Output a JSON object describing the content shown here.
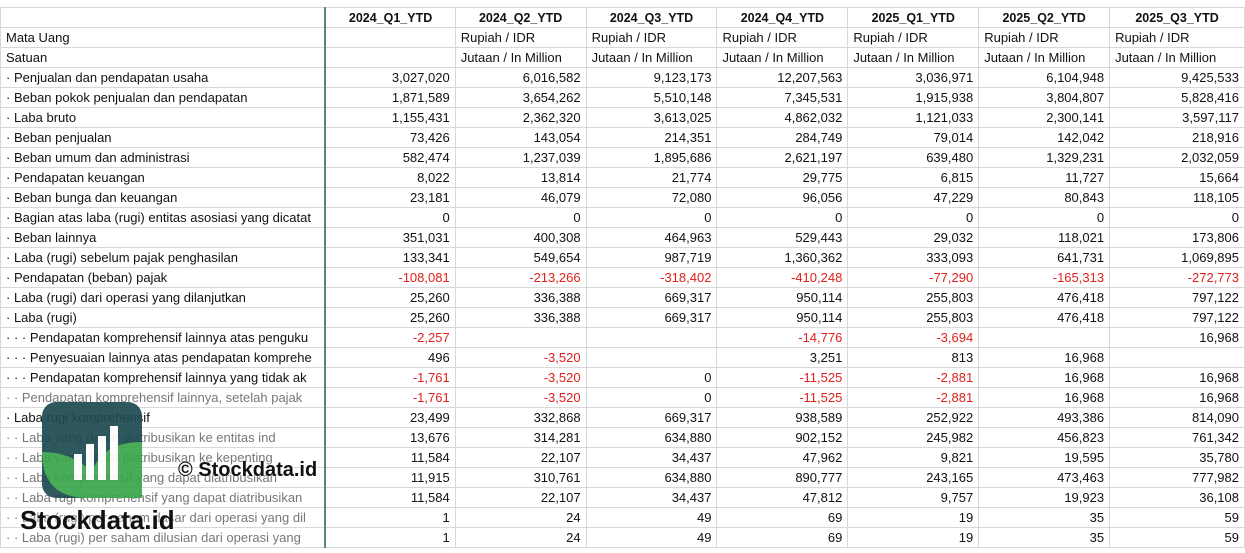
{
  "columns": [
    "2024_Q1_YTD",
    "2024_Q2_YTD",
    "2024_Q3_YTD",
    "2024_Q4_YTD",
    "2025_Q1_YTD",
    "2025_Q2_YTD",
    "2025_Q3_YTD"
  ],
  "currency": {
    "label": "Mata Uang",
    "values": [
      null,
      "Rupiah / IDR",
      "Rupiah / IDR",
      "Rupiah / IDR",
      "Rupiah / IDR",
      "Rupiah / IDR",
      "Rupiah / IDR"
    ]
  },
  "unit": {
    "label": "Satuan",
    "values": [
      null,
      "Jutaan / In Million",
      "Jutaan / In Million",
      "Jutaan / In Million",
      "Jutaan / In Million",
      "Jutaan / In Million",
      "Jutaan / In Million"
    ]
  },
  "rows": [
    {
      "label": "· Penjualan dan pendapatan usaha",
      "values": [
        "3,027,020",
        "6,016,582",
        "9,123,173",
        "12,207,563",
        "3,036,971",
        "6,104,948",
        "9,425,533"
      ]
    },
    {
      "label": "· Beban pokok penjualan dan pendapatan",
      "values": [
        "1,871,589",
        "3,654,262",
        "5,510,148",
        "7,345,531",
        "1,915,938",
        "3,804,807",
        "5,828,416"
      ]
    },
    {
      "label": "· Laba bruto",
      "values": [
        "1,155,431",
        "2,362,320",
        "3,613,025",
        "4,862,032",
        "1,121,033",
        "2,300,141",
        "3,597,117"
      ]
    },
    {
      "label": "· Beban penjualan",
      "values": [
        "73,426",
        "143,054",
        "214,351",
        "284,749",
        "79,014",
        "142,042",
        "218,916"
      ]
    },
    {
      "label": "· Beban umum dan administrasi",
      "values": [
        "582,474",
        "1,237,039",
        "1,895,686",
        "2,621,197",
        "639,480",
        "1,329,231",
        "2,032,059"
      ]
    },
    {
      "label": "· Pendapatan keuangan",
      "values": [
        "8,022",
        "13,814",
        "21,774",
        "29,775",
        "6,815",
        "11,727",
        "15,664"
      ]
    },
    {
      "label": "· Beban bunga dan keuangan",
      "values": [
        "23,181",
        "46,079",
        "72,080",
        "96,056",
        "47,229",
        "80,843",
        "118,105"
      ]
    },
    {
      "label": "· Bagian atas laba (rugi) entitas asosiasi yang dicatat",
      "values": [
        "0",
        "0",
        "0",
        "0",
        "0",
        "0",
        "0"
      ]
    },
    {
      "label": "· Beban lainnya",
      "values": [
        "351,031",
        "400,308",
        "464,963",
        "529,443",
        "29,032",
        "118,021",
        "173,806"
      ]
    },
    {
      "label": "· Laba (rugi) sebelum pajak penghasilan",
      "values": [
        "133,341",
        "549,654",
        "987,719",
        "1,360,362",
        "333,093",
        "641,731",
        "1,069,895"
      ]
    },
    {
      "label": "· Pendapatan (beban) pajak",
      "values": [
        "-108,081",
        "-213,266",
        "-318,402",
        "-410,248",
        "-77,290",
        "-165,313",
        "-272,773"
      ]
    },
    {
      "label": "· Laba (rugi) dari operasi yang dilanjutkan",
      "values": [
        "25,260",
        "336,388",
        "669,317",
        "950,114",
        "255,803",
        "476,418",
        "797,122"
      ]
    },
    {
      "label": "· Laba (rugi)",
      "values": [
        "25,260",
        "336,388",
        "669,317",
        "950,114",
        "255,803",
        "476,418",
        "797,122"
      ]
    },
    {
      "label": "· · · Pendapatan komprehensif lainnya atas penguku",
      "values": [
        "-2,257",
        null,
        null,
        "-14,776",
        "-3,694",
        null,
        "16,968"
      ]
    },
    {
      "label": "· · · Penyesuaian lainnya atas pendapatan komprehe",
      "values": [
        "496",
        "-3,520",
        null,
        "3,251",
        "813",
        "16,968",
        null
      ]
    },
    {
      "label": "· · · Pendapatan komprehensif lainnya yang tidak ak",
      "values": [
        "-1,761",
        "-3,520",
        "0",
        "-11,525",
        "-2,881",
        "16,968",
        "16,968"
      ]
    },
    {
      "label": "· · Pendapatan komprehensif lainnya, setelah pajak",
      "values": [
        "-1,761",
        "-3,520",
        "0",
        "-11,525",
        "-2,881",
        "16,968",
        "16,968"
      ]
    },
    {
      "label": "· Laba rugi komprehensif",
      "values": [
        "23,499",
        "332,868",
        "669,317",
        "938,589",
        "252,922",
        "493,386",
        "814,090"
      ]
    },
    {
      "label": "· · Laba yang dapat diatribusikan ke entitas ind",
      "values": [
        "13,676",
        "314,281",
        "634,880",
        "902,152",
        "245,982",
        "456,823",
        "761,342"
      ]
    },
    {
      "label": "· · Laba yang dapat diatribusikan ke kepenting",
      "values": [
        "11,584",
        "22,107",
        "34,437",
        "47,962",
        "9,821",
        "19,595",
        "35,780"
      ]
    },
    {
      "label": "· · Laba komprehensif yang dapat diatribusikan",
      "values": [
        "11,915",
        "310,761",
        "634,880",
        "890,777",
        "243,165",
        "473,463",
        "777,982"
      ]
    },
    {
      "label": "· · Laba rugi komprehensif yang dapat diatribusikan",
      "values": [
        "11,584",
        "22,107",
        "34,437",
        "47,812",
        "9,757",
        "19,923",
        "36,108"
      ]
    },
    {
      "label": "· · Laba (rugi) per saham dasar dari operasi yang dil",
      "values": [
        "1",
        "24",
        "49",
        "69",
        "19",
        "35",
        "59"
      ]
    },
    {
      "label": "· · Laba (rugi) per saham dilusian dari operasi yang",
      "values": [
        "1",
        "24",
        "49",
        "69",
        "19",
        "35",
        "59"
      ]
    }
  ],
  "watermark": {
    "caption": "© Stockdata.id",
    "brand": "Stockdata.id"
  }
}
